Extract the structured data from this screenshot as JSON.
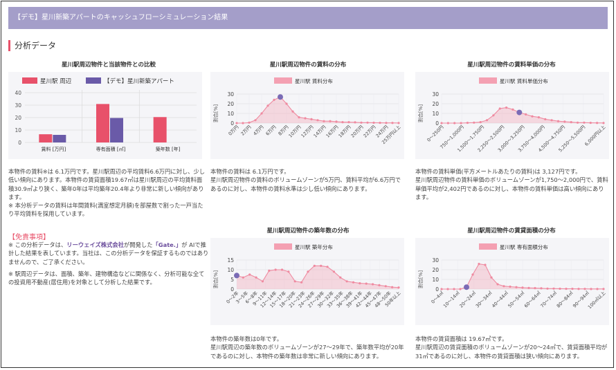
{
  "header": {
    "title": "【デモ】星川新築アパートのキャッシュフローシミュレーション結果"
  },
  "section": {
    "title": "分析データ"
  },
  "compare": {
    "title": "星川駅周辺物件と当該物件との比較",
    "legend": [
      "星川駅 周辺",
      "【デモ】星川新築アパート"
    ],
    "colors": [
      "#e8516a",
      "#6a5aa8"
    ],
    "yticks": [
      "0",
      "10",
      "20",
      "30",
      "40"
    ],
    "categories": [
      "賃料 [万円]",
      "専有面積 [㎡]",
      "築年数 [年]"
    ],
    "text": "本物件の賃料※は 6.1万円です。星川駅周辺の平均賃料6.6万円に対し、少し低い傾向にあります。本物件の賃貸面積19.67㎡は星川駅周辺の平均賃料面積30.9㎡より狭く、築年0年は平均築年20.4年より非常に新しい傾向があります。\n※ 本分析データの賃料は年間賃料(満室想定月額)を部屋数で割った一戸当たり平均賃料を採用しています。"
  },
  "rent_dist": {
    "title": "星川駅周辺物件の賃料の分布",
    "legend": "星川駅 賃料分布",
    "ylabel": "割合[%]",
    "yticks": [
      "0",
      "10",
      "20",
      "30"
    ],
    "xticks": [
      "0万円",
      "2万円",
      "4万円",
      "6万円",
      "8万円",
      "10万円",
      "12万円",
      "14万円",
      "16万円",
      "18万円",
      "20万円",
      "22万円",
      "24万円",
      "25万円以上"
    ],
    "text": "本物件の賃料は 6.1万円です。\n星川駅周辺物件の賃料のボリュームゾーンが5万円、賃料平均が6.6万円であるのに対し、本物件の賃料水準は少し低い傾向にあります。"
  },
  "unit_dist": {
    "title": "星川駅周辺物件の賃料単価の分布",
    "legend": "星川駅 賃料単価分布",
    "ylabel": "割合[%]",
    "yticks": [
      "0",
      "10",
      "20",
      "30"
    ],
    "xticks": [
      "0～250円",
      "750～1,000円",
      "1,500～1,750円",
      "2,250～2,500円",
      "3,000～3,250円",
      "3,750～4,000円",
      "4,500～4,750円",
      "5,250～5,500円",
      "6,000円以上"
    ],
    "text": "本物件の賃料単価(平方メートルあたりの賃料)は 3,127円です。\n星川駅周辺物件の賃料単価のボリュームゾーンが1,750～2,000円で、賃料単価平均が2,402円であるのに対し、本物件の賃料単価は高い傾向にあります。"
  },
  "disclaimer": {
    "head": "【免責事項】",
    "p1_a": "※ この分析データは、",
    "p1_b": "リーウェイズ株式会社",
    "p1_c": "が開発した",
    "p1_d": "「Gate.」",
    "p1_e": "が AIで推計した結果を表しています。当社は、この分析データを保証するものではありませんので、ご了承ください。",
    "p2": "※ 駅周辺データは、面積、築年、建物構造などに関係なく、分析可能な全ての投資用不動産(居住用)を対象として分析した結果です。"
  },
  "age_dist": {
    "title": "星川駅周辺物件の築年数の分布",
    "legend": "星川駅 築年分布",
    "ylabel": "割合[%]",
    "yticks": [
      "0",
      "5",
      "10",
      "15"
    ],
    "xticks": [
      "0～2年",
      "3～5年",
      "6～8年",
      "9～11年",
      "12～14年",
      "15～17年",
      "18～20年",
      "21～23年",
      "24～26年",
      "27～29年",
      "30～32年",
      "33～35年",
      "36～38年",
      "39～41年",
      "42～44年",
      "45～47年",
      "48～50年",
      "50年以上"
    ],
    "text": "本物件の築年数は0年です。\n星川駅周辺の築年数のボリュームゾーンが27～29年で、築年数平均が20年であるのに対し、本物件の築年数は非常に新しい傾向にあります。"
  },
  "area_dist": {
    "title": "星川駅周辺物件の賃貸面積の分布",
    "legend": "星川駅 専有面積分布",
    "ylabel": "割合[%]",
    "yticks": [
      "0",
      "10",
      "20",
      "30"
    ],
    "xticks": [
      "0～4㎡",
      "10～14㎡",
      "20～24㎡",
      "30～34㎡",
      "40～44㎡",
      "50～54㎡",
      "60～64㎡",
      "70～74㎡",
      "80～84㎡",
      "90～94㎡",
      "100㎡以上"
    ],
    "text": "本物件の賃貸面積は 19.67㎡です。\n星川駅周辺の賃貸面積のボリュームゾーンが20～24㎡で、賃貸面積平均が31㎡であるのに対し、本物件の賃貸面積は狭い傾向にあります。"
  },
  "chart_data": [
    {
      "type": "bar",
      "title": "星川駅周辺物件と当該物件との比較",
      "categories": [
        "賃料 [万円]",
        "専有面積 [㎡]",
        "築年数 [年]"
      ],
      "series": [
        {
          "name": "星川駅 周辺",
          "values": [
            6.6,
            30.9,
            20.4
          ]
        },
        {
          "name": "【デモ】星川新築アパート",
          "values": [
            6.1,
            19.67,
            0
          ]
        }
      ],
      "ylim": [
        0,
        40
      ]
    },
    {
      "type": "area",
      "title": "星川駅周辺物件の賃料の分布",
      "ylabel": "割合[%]",
      "ylim": [
        0,
        30
      ],
      "series": [
        {
          "name": "星川駅 賃料分布",
          "values": [
            0,
            0,
            0.5,
            3,
            10,
            18,
            24,
            27,
            20,
            12,
            6,
            5,
            4,
            3,
            2,
            2,
            1.5,
            1,
            1,
            0.8,
            0.5,
            0.5,
            0.4,
            0.3,
            0.2,
            0.2,
            0.1
          ]
        }
      ],
      "marker_index": 7
    },
    {
      "type": "area",
      "title": "星川駅周辺物件の賃料単価の分布",
      "ylabel": "割合[%]",
      "ylim": [
        0,
        30
      ],
      "series": [
        {
          "name": "星川駅 賃料単価分布",
          "values": [
            0,
            0,
            0,
            0,
            0.3,
            0.5,
            1,
            3,
            8,
            15,
            16,
            14,
            11,
            9,
            7,
            6,
            4,
            3,
            2,
            1.5,
            1,
            0.5,
            0.5,
            0.3,
            0.2,
            0.1
          ]
        }
      ],
      "marker_index": 12
    },
    {
      "type": "area",
      "title": "星川駅周辺物件の築年数の分布",
      "ylabel": "割合[%]",
      "ylim": [
        0,
        15
      ],
      "series": [
        {
          "name": "星川駅 築年分布",
          "values": [
            7,
            6,
            7.5,
            6,
            4,
            9.5,
            10,
            10,
            9,
            4,
            3.5,
            9,
            12,
            12,
            11.5,
            9,
            6,
            4,
            3.5,
            3,
            2.8,
            2.5,
            2,
            1.5,
            1,
            0.8
          ]
        }
      ],
      "marker_index": 0
    },
    {
      "type": "area",
      "title": "星川駅周辺物件の賃貸面積の分布",
      "ylabel": "割合[%]",
      "ylim": [
        0,
        30
      ],
      "series": [
        {
          "name": "星川駅 専有面積分布",
          "values": [
            0,
            0,
            0,
            0,
            2,
            15,
            26,
            25,
            12,
            5,
            3,
            2.5,
            2,
            1.5,
            1.2,
            1,
            0.8,
            0.5,
            0.5,
            0.4,
            0.3,
            0.3,
            0.2,
            0.2,
            0.1,
            0.1,
            0.1
          ]
        }
      ],
      "marker_index": 4
    }
  ]
}
